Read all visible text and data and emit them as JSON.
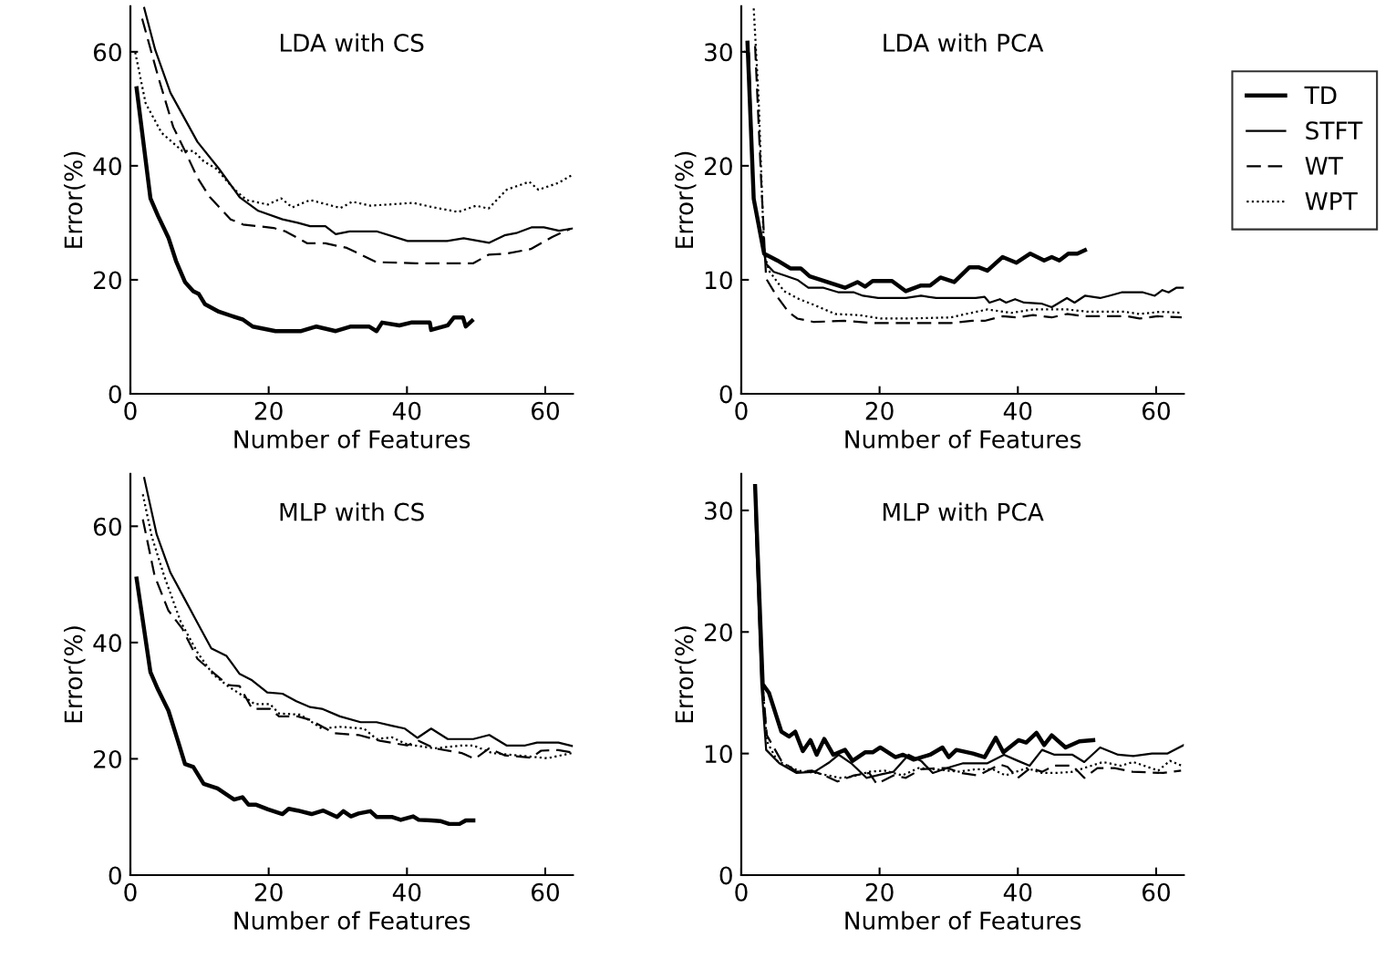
{
  "chart_data": [
    {
      "type": "line",
      "title": "LDA with CS",
      "xlabel": "Number of Features",
      "ylabel": "Error(%)",
      "xlim": [
        0,
        64
      ],
      "ylim": [
        0,
        68
      ],
      "xticks": [
        0,
        20,
        40,
        60
      ],
      "yticks": [
        0,
        20,
        40,
        60
      ],
      "grid": false,
      "legend": "right",
      "marker": "none",
      "series": [
        {
          "name": "TD",
          "color": "#000000",
          "line_style": "solid",
          "x": [
            0.9,
            2.9,
            4,
            5.5,
            6.6,
            7.9,
            9.1,
            9.9,
            10.8,
            12.8,
            16.3,
            17.7,
            21,
            24.7,
            26.9,
            29.7,
            31.9,
            34.5,
            35.6,
            36.4,
            38.9,
            40.6,
            43.3,
            43.5,
            45.9,
            46.8,
            48.1,
            48.5,
            49.4
          ],
          "values": [
            53.6,
            34.3,
            31.2,
            27.4,
            23.3,
            19.6,
            18,
            17.5,
            15.7,
            14.4,
            13,
            11.8,
            11,
            11,
            11.8,
            11,
            11.8,
            11.8,
            11,
            12.5,
            12,
            12.5,
            12.5,
            11.2,
            12,
            13.4,
            13.4,
            11.8,
            12.8
          ]
        },
        {
          "name": "STFT",
          "color": "#000000",
          "line_style": "solid",
          "x": [
            2,
            3.6,
            5.8,
            9.7,
            12.8,
            15.8,
            18.5,
            22,
            24.2,
            26,
            28.2,
            29.7,
            31.7,
            35.6,
            40.1,
            45.8,
            48.2,
            51.9,
            54.1,
            55.8,
            58,
            59.8,
            62,
            63.9
          ],
          "values": [
            67.7,
            60.3,
            52.8,
            44.2,
            39.5,
            34.5,
            32.1,
            30.6,
            30,
            29.4,
            29.4,
            28,
            28.5,
            28.5,
            26.8,
            26.8,
            27.3,
            26.5,
            27.8,
            28.2,
            29.2,
            29.2,
            28.6,
            29
          ]
        },
        {
          "name": "WT",
          "color": "#000000",
          "line_style": "dashed",
          "x": [
            1.7,
            4,
            6.2,
            7.9,
            9.7,
            11.5,
            14.5,
            16.3,
            20.7,
            22.4,
            25.6,
            28.2,
            31.3,
            35.6,
            41.3,
            49.6,
            51.8,
            54.4,
            57.9,
            61,
            63.7
          ],
          "values": [
            65.8,
            55.7,
            46.8,
            42.6,
            37.9,
            34.5,
            30.6,
            29.7,
            29.1,
            28.5,
            26.4,
            26.4,
            25.6,
            23.1,
            22.9,
            22.9,
            24.4,
            24.6,
            25.4,
            27.5,
            29
          ]
        },
        {
          "name": "WPT",
          "color": "#000000",
          "line_style": "dotted",
          "x": [
            0.7,
            2.2,
            4.5,
            7.5,
            9.1,
            10.6,
            12.4,
            15,
            16.8,
            19.9,
            21.8,
            23.4,
            26,
            30.4,
            32.1,
            34.7,
            40.9,
            43.5,
            47.4,
            50,
            51.8,
            54.4,
            57.7,
            59,
            61.9,
            63.9
          ],
          "values": [
            59.9,
            51,
            45.8,
            42.6,
            42.6,
            40.8,
            39.5,
            35.9,
            34,
            33.2,
            34.3,
            32.7,
            34,
            32.6,
            33.7,
            33,
            33.5,
            32.8,
            31.9,
            33,
            32.5,
            35.8,
            37.2,
            35.8,
            37,
            38.4
          ]
        }
      ]
    },
    {
      "type": "line",
      "title": "LDA with PCA",
      "xlabel": "Number of Features",
      "ylabel": "Error(%)",
      "xlim": [
        0,
        64
      ],
      "ylim": [
        0,
        34
      ],
      "xticks": [
        0,
        20,
        40,
        60
      ],
      "yticks": [
        0,
        10,
        20,
        30
      ],
      "grid": false,
      "legend": false,
      "marker": "none",
      "series": [
        {
          "color": "#000000",
          "line_style": "solid",
          "x": [
            0.9,
            1.8,
            3.3,
            5.2,
            7.1,
            8.6,
            9.9,
            15,
            16.8,
            17.9,
            19,
            21.8,
            23.8,
            26,
            27.3,
            28.8,
            30.8,
            33,
            34.3,
            35.6,
            37.8,
            39.8,
            41.8,
            43.8,
            44.9,
            46,
            47.3,
            48.6,
            49.7
          ],
          "values": [
            30.8,
            17.1,
            12.3,
            11.7,
            11,
            11,
            10.3,
            9.3,
            9.8,
            9.4,
            9.9,
            9.9,
            9,
            9.5,
            9.5,
            10.2,
            9.8,
            11.1,
            11.1,
            10.8,
            12,
            11.5,
            12.3,
            11.7,
            12,
            11.7,
            12.3,
            12.3,
            12.6
          ]
        },
        {
          "color": "#000000",
          "line_style": "solid",
          "x": [
            0.5,
            1.1,
            1.8,
            3.6,
            4.7,
            6.2,
            8.1,
            9.7,
            11.9,
            14.1,
            16.3,
            17.6,
            19.8,
            23.8,
            26,
            28.2,
            33.9,
            35.2,
            35.9,
            37.4,
            38.3,
            39.6,
            40.9,
            43.5,
            44.9,
            47.1,
            48.2,
            49.7,
            51.9,
            53.2,
            55,
            58.1,
            59.8,
            60.9,
            61.8,
            62.9,
            64
          ],
          "values": [
            30,
            29.9,
            16.9,
            11.4,
            10.7,
            10.4,
            10,
            9.3,
            9.3,
            8.9,
            8.9,
            8.6,
            8.4,
            8.4,
            8.6,
            8.4,
            8.4,
            8.5,
            8,
            8.3,
            8,
            8.3,
            8,
            7.9,
            7.6,
            8.4,
            8,
            8.6,
            8.4,
            8.6,
            8.9,
            8.9,
            8.6,
            9.1,
            8.9,
            9.3,
            9.3
          ]
        },
        {
          "color": "#000000",
          "line_style": "dashed",
          "x": [
            2,
            2.9,
            3.6,
            5.1,
            6.8,
            8.1,
            10.5,
            14.9,
            19.3,
            30.3,
            33.4,
            35.2,
            37.8,
            40,
            42.2,
            44.9,
            47.1,
            49.7,
            55.9,
            57.6,
            60.2,
            63.7
          ],
          "values": [
            30.5,
            18.4,
            10.1,
            8.6,
            7.2,
            6.6,
            6.3,
            6.4,
            6.2,
            6.2,
            6.4,
            6.4,
            6.8,
            6.7,
            6.9,
            6.7,
            7,
            6.8,
            6.8,
            6.6,
            6.8,
            6.7
          ]
        },
        {
          "color": "#000000",
          "line_style": "dotted",
          "x": [
            1.8,
            2.5,
            3.3,
            4,
            6.2,
            8.4,
            10.5,
            13.6,
            17.1,
            20.2,
            23.8,
            30.3,
            32.5,
            35.6,
            39.1,
            42.2,
            47.1,
            50.1,
            55.4,
            57.6,
            60.7,
            63.7
          ],
          "values": [
            33.8,
            26,
            12.4,
            10.8,
            9,
            8.3,
            7.8,
            7,
            6.9,
            6.6,
            6.6,
            6.7,
            7,
            7.4,
            7.1,
            7.4,
            7.4,
            7.2,
            7.2,
            7,
            7.2,
            7.1
          ]
        }
      ]
    },
    {
      "type": "line",
      "title": "MLP with CS",
      "xlabel": "Number of Features",
      "ylabel": "Error(%)",
      "xlim": [
        0,
        64
      ],
      "ylim": [
        0,
        69
      ],
      "xticks": [
        0,
        20,
        40,
        60
      ],
      "yticks": [
        0,
        20,
        40,
        60
      ],
      "grid": false,
      "legend": false,
      "marker": "none",
      "series": [
        {
          "color": "#000000",
          "line_style": "solid",
          "x": [
            0.9,
            2.9,
            4,
            5.5,
            6.9,
            7.9,
            9.1,
            10.6,
            12.6,
            15,
            16.2,
            17.1,
            18.2,
            19.9,
            22,
            22.9,
            24.2,
            26.2,
            27.9,
            29.9,
            30.8,
            31.9,
            33,
            34.7,
            35.6,
            37.8,
            39.1,
            40.9,
            41.7,
            43.5,
            44.8,
            46.1,
            47.6,
            48.5,
            49.6
          ],
          "values": [
            51,
            34.9,
            31.9,
            28.3,
            23,
            19.1,
            18.6,
            15.7,
            14.9,
            13,
            13.4,
            12.1,
            12.1,
            11.3,
            10.5,
            11.4,
            11.1,
            10.5,
            11.1,
            10,
            11,
            10.1,
            10.6,
            11,
            10,
            10,
            9.5,
            10.1,
            9.5,
            9.4,
            9.3,
            8.8,
            8.8,
            9.4,
            9.4
          ]
        },
        {
          "color": "#000000",
          "line_style": "solid",
          "x": [
            2,
            3.8,
            5.8,
            7.8,
            9.7,
            11.7,
            13.9,
            15.8,
            17.6,
            19.8,
            22,
            24,
            26,
            27.7,
            30.3,
            33.3,
            35.6,
            37.8,
            39.7,
            41.5,
            43.5,
            45.9,
            49.6,
            51.9,
            54.4,
            57.1,
            58.8,
            61.9,
            63.9
          ],
          "values": [
            68.3,
            58.6,
            52,
            47.6,
            43.4,
            39,
            37.7,
            34.6,
            33.5,
            31.4,
            31.2,
            29.9,
            28.9,
            28.6,
            27.3,
            26.3,
            26.3,
            25.7,
            25.2,
            23.6,
            25.2,
            23.4,
            23.4,
            24.1,
            22.3,
            22.3,
            22.8,
            22.8,
            22.2
          ]
        },
        {
          "color": "#000000",
          "line_style": "dashed",
          "x": [
            1.8,
            3.5,
            5.5,
            7.5,
            9.7,
            11.7,
            14.1,
            15.8,
            17.6,
            20.2,
            21.5,
            24.2,
            26,
            29.5,
            33,
            36.1,
            40,
            41.7,
            44,
            47.9,
            49.8,
            51.9,
            54.1,
            58,
            59.4,
            61.9,
            63.9
          ],
          "values": [
            61.2,
            51.5,
            45.5,
            42.4,
            37.2,
            35.1,
            32.7,
            32.5,
            28.6,
            28.6,
            27.3,
            27.3,
            26.7,
            24.4,
            24.1,
            23.1,
            22.3,
            23.1,
            21.8,
            21,
            20,
            21.8,
            20.6,
            20.2,
            21.4,
            21.5,
            21.1
          ]
        },
        {
          "color": "#000000",
          "line_style": "dotted",
          "x": [
            1.8,
            3.1,
            4.9,
            7.3,
            9.7,
            11.9,
            14.1,
            15.8,
            18,
            20.2,
            21.5,
            24.6,
            27.7,
            30.3,
            33.8,
            35.6,
            37.8,
            40,
            44,
            47.9,
            49.6,
            52.3,
            56.7,
            60.3,
            63.9
          ],
          "values": [
            65.5,
            58.2,
            51.4,
            43.5,
            38.3,
            34.6,
            32.5,
            31.2,
            29.4,
            29.4,
            27.8,
            27.6,
            25.2,
            25.5,
            25.2,
            23.4,
            23.7,
            22.5,
            21.8,
            22.3,
            22.3,
            21,
            20.5,
            20.1,
            21
          ]
        }
      ]
    },
    {
      "type": "line",
      "title": "MLP with PCA",
      "xlabel": "Number of Features",
      "ylabel": "Error(%)",
      "xlim": [
        0,
        64
      ],
      "ylim": [
        0,
        33
      ],
      "xticks": [
        0,
        20,
        40,
        60
      ],
      "yticks": [
        0,
        10,
        20,
        30
      ],
      "grid": false,
      "legend": false,
      "marker": "none",
      "series": [
        {
          "color": "#000000",
          "line_style": "solid",
          "x": [
            2,
            3.1,
            4,
            5.8,
            6.9,
            7.8,
            8.9,
            10,
            10.9,
            12,
            13.3,
            15,
            16.1,
            17.9,
            19,
            20.1,
            22.3,
            23.4,
            24.9,
            27.3,
            29.1,
            30,
            31.1,
            33.5,
            35.2,
            36.8,
            37.9,
            40.1,
            41.2,
            42.7,
            43.8,
            44.9,
            46.9,
            48.9,
            50.9
          ],
          "values": [
            32,
            15.7,
            15,
            11.8,
            11.4,
            11.8,
            10.2,
            11.1,
            9.9,
            11.2,
            9.9,
            10.3,
            9.4,
            10.1,
            10.1,
            10.5,
            9.7,
            9.9,
            9.5,
            9.9,
            10.5,
            9.7,
            10.3,
            10,
            9.7,
            11.3,
            10.1,
            11.1,
            10.9,
            11.7,
            10.7,
            11.5,
            10.5,
            11,
            11.1
          ]
        },
        {
          "color": "#000000",
          "line_style": "solid",
          "x": [
            2,
            2.9,
            3.6,
            5.5,
            8,
            10.6,
            12.8,
            14.1,
            15.9,
            18.1,
            20.3,
            22,
            24.2,
            26,
            27.7,
            30.3,
            32.1,
            35.6,
            38,
            40,
            41.7,
            43.5,
            45.3,
            47.9,
            49.6,
            51.9,
            54.5,
            56.7,
            59.4,
            61.6,
            64
          ],
          "values": [
            30.1,
            15.7,
            10.3,
            9.2,
            8.4,
            8.5,
            9.3,
            9.9,
            9.2,
            8,
            8.3,
            8.5,
            9.9,
            9.4,
            8.4,
            8.9,
            9.2,
            9.2,
            9.9,
            9.4,
            9,
            10.3,
            9.9,
            9.9,
            9.3,
            10.5,
            9.9,
            9.8,
            10,
            10,
            10.7
          ]
        },
        {
          "color": "#000000",
          "line_style": "dashed",
          "x": [
            2.2,
            3.1,
            3.7,
            5.8,
            8,
            10.2,
            12.4,
            13.9,
            16.3,
            18.5,
            19.6,
            22,
            23.8,
            26,
            28.2,
            29.9,
            31.7,
            34.3,
            37.4,
            38.5,
            40,
            41.8,
            43.5,
            45.3,
            47.9,
            49.6,
            51.5,
            54,
            56.6,
            61,
            63.6
          ],
          "values": [
            27.7,
            15.7,
            11.5,
            9.4,
            8.5,
            8.6,
            8.1,
            7.7,
            8.2,
            8.4,
            7.5,
            8.2,
            8,
            8.7,
            8.8,
            8.8,
            8.4,
            8.2,
            9.1,
            8.9,
            8,
            8.8,
            8.5,
            9,
            9,
            8,
            8.8,
            8.8,
            8.5,
            8.4,
            8.6
          ]
        },
        {
          "color": "#000000",
          "line_style": "dotted",
          "x": [
            2,
            3.1,
            3.7,
            5.2,
            8.2,
            10.8,
            14.3,
            16,
            18.5,
            20.7,
            23.3,
            25.6,
            28.2,
            31.3,
            33.8,
            36.4,
            38.2,
            41.3,
            43.5,
            45.7,
            47.9,
            52.3,
            54.9,
            56.7,
            60.3,
            62,
            63.7
          ],
          "values": [
            30.9,
            15.7,
            11,
            9.4,
            8.6,
            8.4,
            8,
            8.1,
            8.5,
            8.6,
            8.2,
            8.8,
            8.7,
            8.5,
            8.7,
            8.7,
            8.2,
            8.8,
            8.4,
            8.4,
            8.5,
            9.3,
            9,
            9.3,
            8.6,
            9.4,
            9
          ]
        }
      ]
    }
  ]
}
